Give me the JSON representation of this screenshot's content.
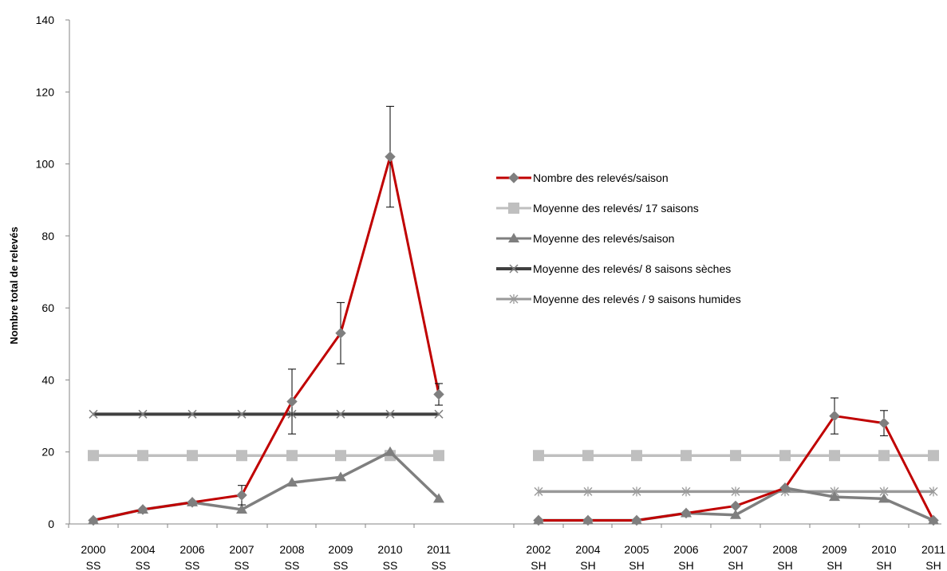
{
  "chart_data": {
    "type": "line",
    "ylabel": "Nombre total de relevés",
    "ylim": [
      0,
      140
    ],
    "yticks": [
      "0",
      "20",
      "40",
      "60",
      "80",
      "100",
      "120",
      "140"
    ],
    "grid": false,
    "legend_position": "right",
    "groups": [
      {
        "categories": [
          {
            "year": "2000",
            "season": "SS"
          },
          {
            "year": "2004",
            "season": "SS"
          },
          {
            "year": "2006",
            "season": "SS"
          },
          {
            "year": "2007",
            "season": "SS"
          },
          {
            "year": "2008",
            "season": "SS"
          },
          {
            "year": "2009",
            "season": "SS"
          },
          {
            "year": "2010",
            "season": "SS"
          },
          {
            "year": "2011",
            "season": "SS"
          }
        ],
        "series": [
          {
            "name": "Nombre des relevés/saison",
            "values": [
              1,
              4,
              6,
              8,
              34,
              53,
              102,
              36
            ],
            "errors": [
              null,
              null,
              null,
              2.7,
              9,
              8.5,
              14,
              3
            ]
          },
          {
            "name": "Moyenne des relevés/ 17 saisons",
            "values": [
              19,
              19,
              19,
              19,
              19,
              19,
              19,
              19
            ]
          },
          {
            "name": "Moyenne des relevés/saison",
            "values": [
              1,
              4,
              6,
              4,
              11.5,
              13,
              20,
              7
            ]
          },
          {
            "name": "Moyenne des relevés/ 8 saisons sèches",
            "values": [
              30.5,
              30.5,
              30.5,
              30.5,
              30.5,
              30.5,
              30.5,
              30.5
            ]
          }
        ]
      },
      {
        "categories": [
          {
            "year": "2002",
            "season": "SH"
          },
          {
            "year": "2004",
            "season": "SH"
          },
          {
            "year": "2005",
            "season": "SH"
          },
          {
            "year": "2006",
            "season": "SH"
          },
          {
            "year": "2007",
            "season": "SH"
          },
          {
            "year": "2008",
            "season": "SH"
          },
          {
            "year": "2009",
            "season": "SH"
          },
          {
            "year": "2010",
            "season": "SH"
          },
          {
            "year": "2011",
            "season": "SH"
          }
        ],
        "series": [
          {
            "name": "Nombre des relevés/saison",
            "values": [
              1,
              1,
              1,
              3,
              5,
              10,
              30,
              28,
              1
            ],
            "errors": [
              null,
              null,
              null,
              null,
              null,
              null,
              5,
              3.5,
              null
            ]
          },
          {
            "name": "Moyenne des relevés/ 17 saisons",
            "values": [
              19,
              19,
              19,
              19,
              19,
              19,
              19,
              19,
              19
            ]
          },
          {
            "name": "Moyenne des relevés/saison",
            "values": [
              1,
              1,
              1,
              3,
              2.5,
              10,
              7.5,
              7,
              1
            ]
          },
          {
            "name": "Moyenne des relevés / 9 saisons humides",
            "values": [
              9,
              9,
              9,
              9,
              9,
              9,
              9,
              9,
              9
            ]
          }
        ]
      }
    ],
    "legend": [
      {
        "name": "Nombre des relevés/saison",
        "color": "#c00000",
        "marker": "diamond"
      },
      {
        "name": "Moyenne des relevés/ 17 saisons",
        "color": "#bfbfbf",
        "marker": "square"
      },
      {
        "name": "Moyenne des relevés/saison",
        "color": "#7f7f7f",
        "marker": "triangle"
      },
      {
        "name": "Moyenne des relevés/ 8 saisons sèches",
        "color": "#404040",
        "marker": "x"
      },
      {
        "name": "Moyenne  des relevés / 9 saisons humides",
        "color": "#999999",
        "marker": "star"
      }
    ]
  }
}
